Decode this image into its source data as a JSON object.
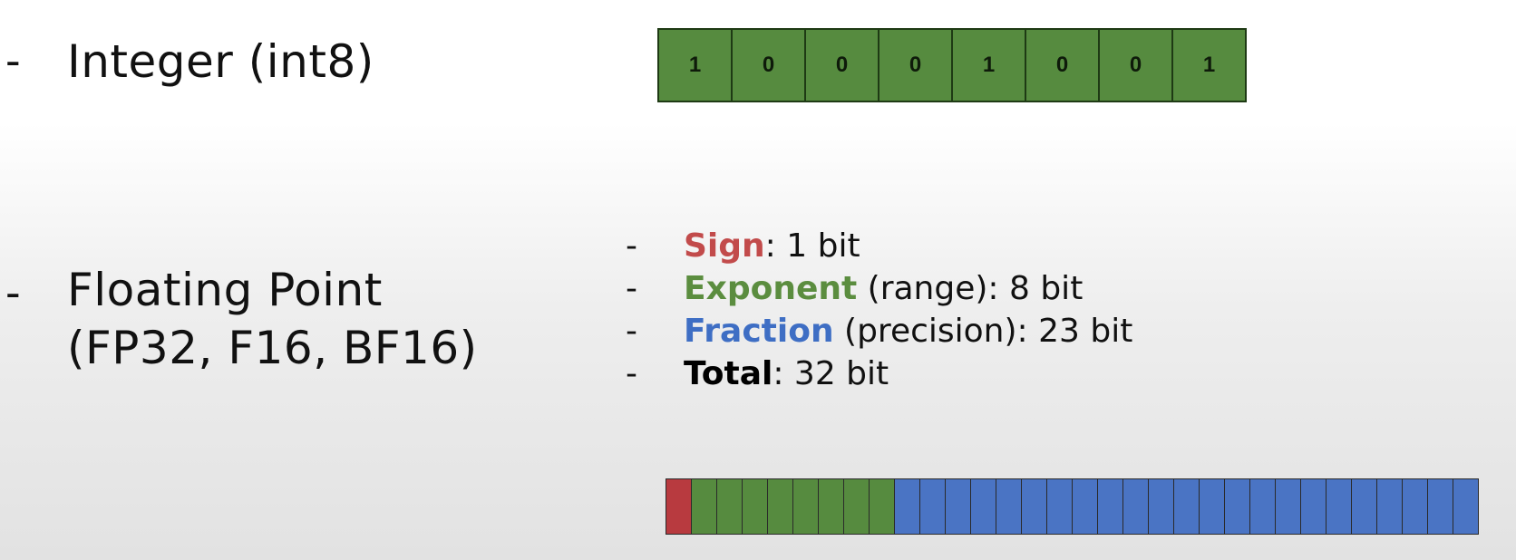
{
  "integer": {
    "dash": "-",
    "label": "Integer (int8)",
    "bits": [
      "1",
      "0",
      "0",
      "0",
      "1",
      "0",
      "0",
      "1"
    ]
  },
  "floating_point": {
    "dash": "-",
    "label_line1": "Floating Point",
    "label_line2": "(FP32, F16, BF16)",
    "list": [
      {
        "dash": "-",
        "name": "Sign",
        "rest": ": 1 bit",
        "color": "#c24b4b"
      },
      {
        "dash": "-",
        "name": "Exponent",
        "rest": " (range): 8 bit",
        "color": "#5b8d3f"
      },
      {
        "dash": "-",
        "name": "Fraction",
        "rest": " (precision): 23 bit",
        "color": "#3e6ec4"
      },
      {
        "dash": "-",
        "name": "Total",
        "rest": ": 32 bit",
        "color": "#000000"
      }
    ],
    "bit_layout": {
      "sign_bits": 1,
      "exponent_bits": 8,
      "fraction_bits": 23,
      "colors": {
        "sign": "#b83a3f",
        "exponent": "#568b3f",
        "fraction": "#4a74c4",
        "int_bits": "#568b3f"
      }
    }
  }
}
